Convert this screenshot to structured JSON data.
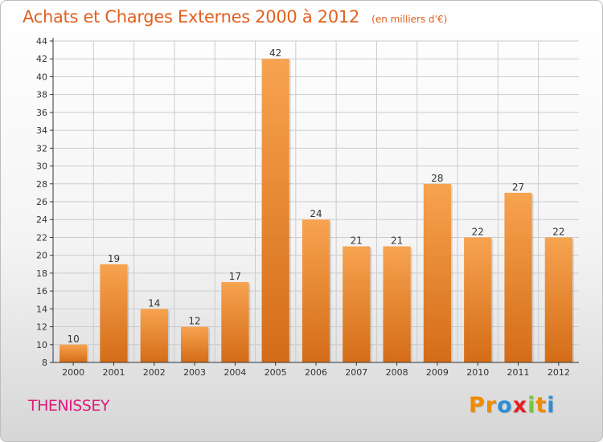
{
  "header": {
    "title": "Achats et Charges Externes 2000 à 2012",
    "subtitle": "(en milliers d'€)"
  },
  "footer": {
    "commune": "THENISSEY",
    "brand": "Proxiti",
    "brand_letters": [
      "P",
      "r",
      "o",
      "x",
      "i",
      "t",
      "i"
    ],
    "brand_colors": [
      "#f08a00",
      "#f08a00",
      "#2a8fd6",
      "#e41f26",
      "#7cc242",
      "#f08a00",
      "#2a8fd6"
    ]
  },
  "colors": {
    "bar_top": "#f7a350",
    "bar_bottom": "#d46c17",
    "grid": "#cccccc",
    "axis": "#333333"
  },
  "chart_data": {
    "type": "bar",
    "title": "Achats et Charges Externes 2000 à 2012",
    "subtitle": "(en milliers d'€)",
    "categories": [
      "2000",
      "2001",
      "2002",
      "2003",
      "2004",
      "2005",
      "2006",
      "2007",
      "2008",
      "2009",
      "2010",
      "2011",
      "2012"
    ],
    "values": [
      10,
      19,
      14,
      12,
      17,
      42,
      24,
      21,
      21,
      28,
      22,
      27,
      22
    ],
    "ylim": [
      8,
      44
    ],
    "ytick_step": 2,
    "xlabel": "",
    "ylabel": "",
    "grid": true,
    "data_labels": true
  }
}
